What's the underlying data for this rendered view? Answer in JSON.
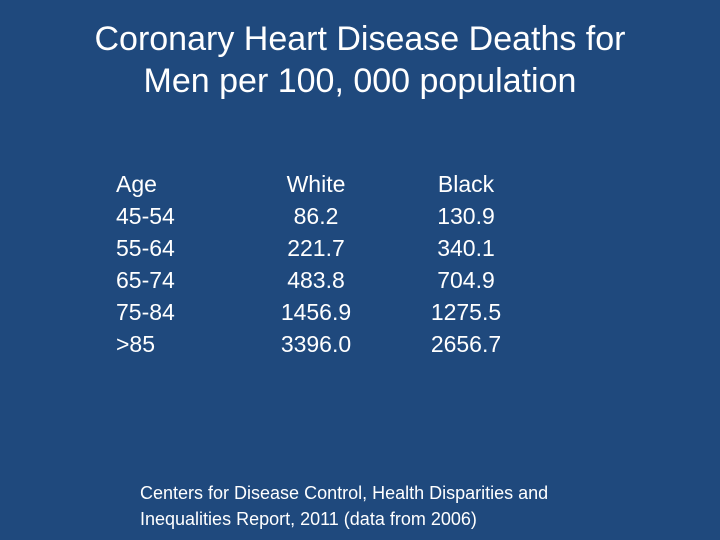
{
  "title": {
    "line1": "Coronary Heart Disease Deaths for",
    "line2": "Men per 100, 000 population"
  },
  "table": {
    "headers": [
      "Age",
      "White",
      "Black"
    ],
    "rows": [
      [
        "45-54",
        "86.2",
        "130.9"
      ],
      [
        "55-64",
        "221.7",
        "340.1"
      ],
      [
        "65-74",
        "483.8",
        "704.9"
      ],
      [
        "75-84",
        "1456.9",
        "1275.5"
      ],
      [
        ">85",
        "3396.0",
        "2656.7"
      ]
    ]
  },
  "source": {
    "line1": "Centers for Disease Control, Health Disparities and",
    "line2": "Inequalities Report, 2011 (data from 2006)"
  }
}
